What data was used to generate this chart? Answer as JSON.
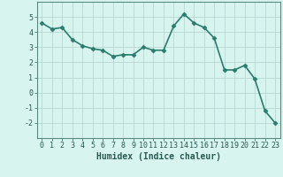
{
  "xlabel": "Humidex (Indice chaleur)",
  "ylabel": "",
  "x": [
    0,
    1,
    2,
    3,
    4,
    5,
    6,
    7,
    8,
    9,
    10,
    11,
    12,
    13,
    14,
    15,
    16,
    17,
    18,
    19,
    20,
    21,
    22,
    23
  ],
  "y": [
    4.6,
    4.2,
    4.3,
    3.5,
    3.1,
    2.9,
    2.8,
    2.4,
    2.5,
    2.5,
    3.0,
    2.8,
    2.8,
    4.4,
    5.2,
    4.6,
    4.3,
    3.6,
    1.5,
    1.5,
    1.8,
    0.9,
    -1.2,
    -2.0
  ],
  "line_color": "#2a7d6e",
  "marker": "D",
  "marker_size": 2.5,
  "bg_color": "#d8f4ef",
  "grid_color": "#b8d8d4",
  "xlim": [
    -0.5,
    23.5
  ],
  "ylim": [
    -3,
    6
  ],
  "yticks": [
    -2,
    -1,
    0,
    1,
    2,
    3,
    4,
    5
  ],
  "xticks": [
    0,
    1,
    2,
    3,
    4,
    5,
    6,
    7,
    8,
    9,
    10,
    11,
    12,
    13,
    14,
    15,
    16,
    17,
    18,
    19,
    20,
    21,
    22,
    23
  ],
  "xlabel_fontsize": 7,
  "tick_fontsize": 6,
  "line_width": 1.2,
  "spine_color": "#5a8a84",
  "text_color": "#2a5a54"
}
